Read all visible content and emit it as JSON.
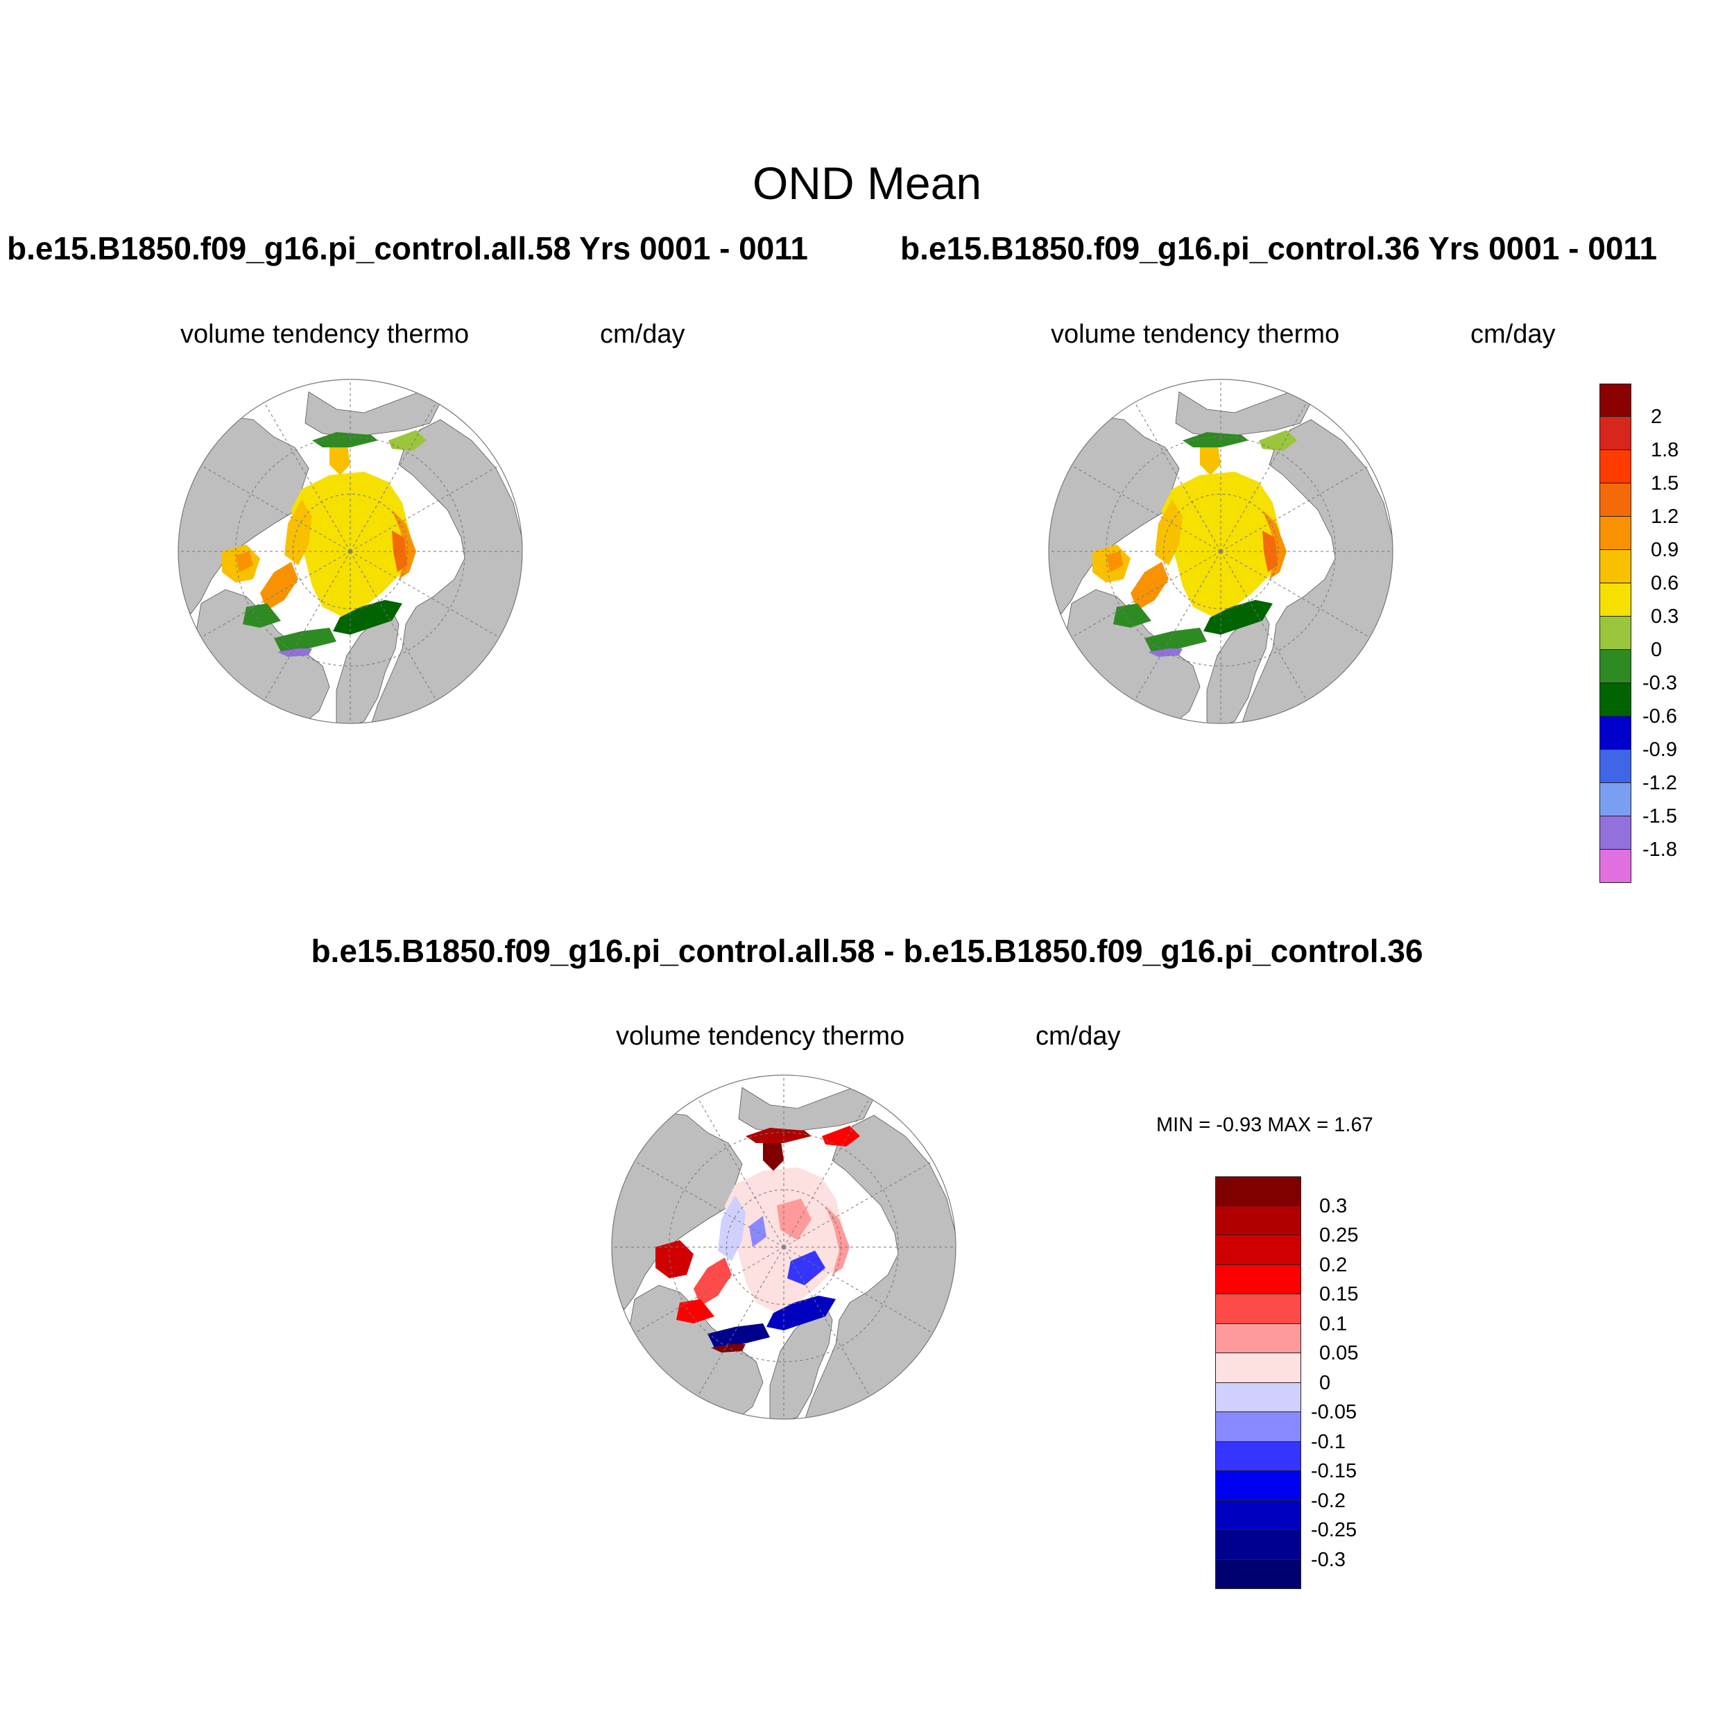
{
  "page_title": "OND Mean",
  "colors": {
    "land": "#bebebe",
    "land_edge": "#555555",
    "grid": "#777777",
    "no_data": "#ffffff"
  },
  "panels": [
    {
      "id": "case1",
      "title": "b.e15.B1850.f09_g16.pi_control.all.58  Yrs 0001 - 0011",
      "variable": "volume tendency thermo",
      "units": "cm/day",
      "field": "abs"
    },
    {
      "id": "case2",
      "title": "b.e15.B1850.f09_g16.pi_control.36  Yrs 0001 - 0011",
      "variable": "volume tendency thermo",
      "units": "cm/day",
      "field": "abs"
    },
    {
      "id": "diff",
      "title": "b.e15.B1850.f09_g16.pi_control.all.58 - b.e15.B1850.f09_g16.pi_control.36",
      "variable": "volume tendency thermo",
      "units": "cm/day",
      "stats": "MIN =  -0.93 MAX =   1.67",
      "field": "diff"
    }
  ],
  "colorbars": {
    "absolute": {
      "labels": [
        "2",
        "1.8",
        "1.5",
        "1.2",
        "0.9",
        "0.6",
        "0.3",
        "0",
        "-0.3",
        "-0.6",
        "-0.9",
        "-1.2",
        "-1.5",
        "-1.8"
      ],
      "colors": [
        "#8b0000",
        "#d7261c",
        "#ff3b00",
        "#f46a08",
        "#f99200",
        "#f9c000",
        "#f5e000",
        "#9bc53b",
        "#2e8b22",
        "#006400",
        "#0000cd",
        "#3f66e6",
        "#7a9ef0",
        "#9370db",
        "#e070e0"
      ]
    },
    "difference": {
      "labels": [
        "0.3",
        "0.25",
        "0.2",
        "0.15",
        "0.1",
        "0.05",
        "0",
        "-0.05",
        "-0.1",
        "-0.15",
        "-0.2",
        "-0.25",
        "-0.3"
      ],
      "colors": [
        "#800000",
        "#b00000",
        "#d00000",
        "#ff0000",
        "#ff4a4a",
        "#ff9a9a",
        "#fde0e0",
        "#d0d0ff",
        "#8888ff",
        "#3535ff",
        "#0000f0",
        "#0000c0",
        "#00008e",
        "#000070"
      ]
    }
  }
}
